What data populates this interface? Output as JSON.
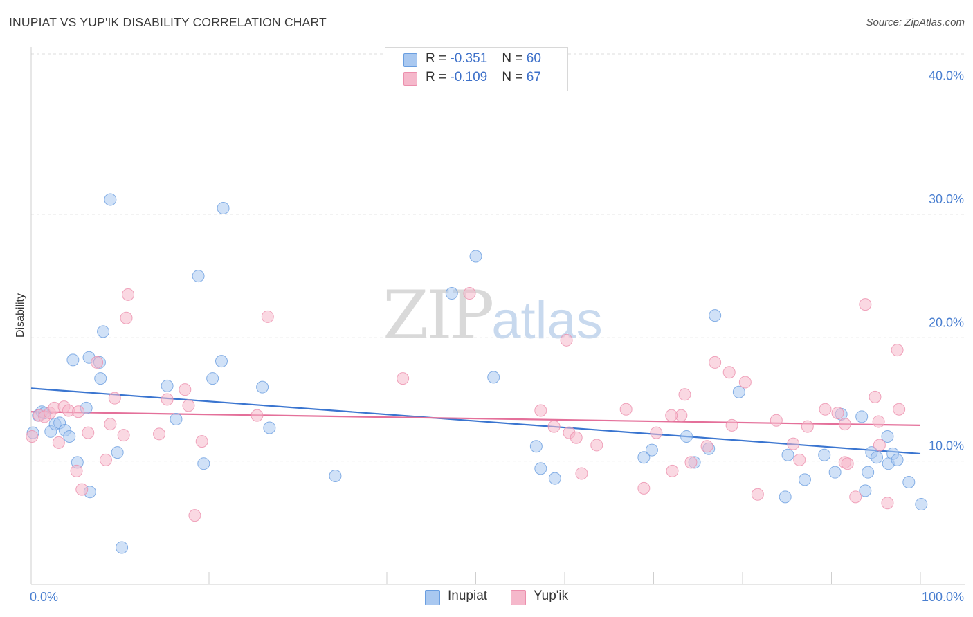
{
  "header": {
    "title": "INUPIAT VS YUP'IK DISABILITY CORRELATION CHART",
    "source": "Source: ZipAtlas.com"
  },
  "watermark": {
    "zip": "ZIP",
    "atlas": "atlas"
  },
  "legend": {
    "rows": [
      {
        "r_label": "R = ",
        "r_value": "-0.351",
        "n_label": "N = ",
        "n_value": "60",
        "color": "#a9c8f0"
      },
      {
        "r_label": "R = ",
        "r_value": "-0.109",
        "n_label": "N = ",
        "n_value": "67",
        "color": "#f5b8cb"
      }
    ]
  },
  "bottom_legend": {
    "items": [
      {
        "label": "Inupiat",
        "color": "#a9c8f0"
      },
      {
        "label": "Yup'ik",
        "color": "#f5b8cb"
      }
    ]
  },
  "chart_data": {
    "type": "scatter",
    "title": "INUPIAT VS YUP'IK DISABILITY CORRELATION CHART",
    "xlabel": "",
    "ylabel": "Disability",
    "xlim": [
      0,
      100
    ],
    "ylim": [
      0,
      43
    ],
    "x_tick_labels": [
      "0.0%",
      "100.0%"
    ],
    "y_ticks": [
      10,
      20,
      30,
      40
    ],
    "y_tick_labels": [
      "10.0%",
      "20.0%",
      "30.0%",
      "40.0%"
    ],
    "grid": true,
    "series": [
      {
        "name": "Inupiat",
        "color": "#6a9ee0",
        "fill": "#a9c8f0",
        "trend": {
          "x": [
            0,
            100
          ],
          "y": [
            15.9,
            10.6
          ]
        },
        "points": [
          [
            0.2,
            12.3
          ],
          [
            0.8,
            13.7
          ],
          [
            1.2,
            14.0
          ],
          [
            1.5,
            13.9
          ],
          [
            2.2,
            12.4
          ],
          [
            2.7,
            13.0
          ],
          [
            3.2,
            13.1
          ],
          [
            3.8,
            12.5
          ],
          [
            4.3,
            12.0
          ],
          [
            4.7,
            18.2
          ],
          [
            5.2,
            9.9
          ],
          [
            6.2,
            14.3
          ],
          [
            6.5,
            18.4
          ],
          [
            6.6,
            7.5
          ],
          [
            7.7,
            18.0
          ],
          [
            7.8,
            16.7
          ],
          [
            8.1,
            20.5
          ],
          [
            8.9,
            31.2
          ],
          [
            9.7,
            10.7
          ],
          [
            10.2,
            3.0
          ],
          [
            15.3,
            16.1
          ],
          [
            16.3,
            13.4
          ],
          [
            19.4,
            9.8
          ],
          [
            20.4,
            16.7
          ],
          [
            21.4,
            18.1
          ],
          [
            21.6,
            30.5
          ],
          [
            26.8,
            12.7
          ],
          [
            18.8,
            25.0
          ],
          [
            26.0,
            16.0
          ],
          [
            34.2,
            8.8
          ],
          [
            47.3,
            23.6
          ],
          [
            50.0,
            26.6
          ],
          [
            52.0,
            16.8
          ],
          [
            56.8,
            11.2
          ],
          [
            57.3,
            9.4
          ],
          [
            58.9,
            8.6
          ],
          [
            68.9,
            10.3
          ],
          [
            69.8,
            10.9
          ],
          [
            73.7,
            12.0
          ],
          [
            74.6,
            9.9
          ],
          [
            76.2,
            11.0
          ],
          [
            76.9,
            21.8
          ],
          [
            79.6,
            15.6
          ],
          [
            85.1,
            10.5
          ],
          [
            84.8,
            7.1
          ],
          [
            87.0,
            8.5
          ],
          [
            89.2,
            10.5
          ],
          [
            90.4,
            9.1
          ],
          [
            91.1,
            13.8
          ],
          [
            93.4,
            13.6
          ],
          [
            94.5,
            10.7
          ],
          [
            95.1,
            10.3
          ],
          [
            94.1,
            9.1
          ],
          [
            96.3,
            12.0
          ],
          [
            96.4,
            9.8
          ],
          [
            96.9,
            10.6
          ],
          [
            97.4,
            10.1
          ],
          [
            98.7,
            8.3
          ],
          [
            100.1,
            6.5
          ],
          [
            93.8,
            7.6
          ]
        ]
      },
      {
        "name": "Yup'ik",
        "color": "#ec8fad",
        "fill": "#f5b8cb",
        "trend": {
          "x": [
            0,
            100
          ],
          "y": [
            14.0,
            12.9
          ]
        },
        "points": [
          [
            0.1,
            12.0
          ],
          [
            0.9,
            13.7
          ],
          [
            1.5,
            13.6
          ],
          [
            2.1,
            13.9
          ],
          [
            2.6,
            14.3
          ],
          [
            3.1,
            11.5
          ],
          [
            3.7,
            14.4
          ],
          [
            4.2,
            14.1
          ],
          [
            5.1,
            9.2
          ],
          [
            5.3,
            14.0
          ],
          [
            5.7,
            7.7
          ],
          [
            6.4,
            12.3
          ],
          [
            7.4,
            18.0
          ],
          [
            8.4,
            10.1
          ],
          [
            8.9,
            13.0
          ],
          [
            9.4,
            15.1
          ],
          [
            10.4,
            12.1
          ],
          [
            10.9,
            23.5
          ],
          [
            10.7,
            21.6
          ],
          [
            14.4,
            12.2
          ],
          [
            15.3,
            15.0
          ],
          [
            17.3,
            15.8
          ],
          [
            17.7,
            14.5
          ],
          [
            18.4,
            5.6
          ],
          [
            19.2,
            11.6
          ],
          [
            26.6,
            21.7
          ],
          [
            25.4,
            13.7
          ],
          [
            41.8,
            16.7
          ],
          [
            49.3,
            23.6
          ],
          [
            57.3,
            14.1
          ],
          [
            58.8,
            12.8
          ],
          [
            60.2,
            19.8
          ],
          [
            60.5,
            12.3
          ],
          [
            61.3,
            11.9
          ],
          [
            61.9,
            9.0
          ],
          [
            63.6,
            11.3
          ],
          [
            66.9,
            14.2
          ],
          [
            68.9,
            7.8
          ],
          [
            70.3,
            12.3
          ],
          [
            72.1,
            9.2
          ],
          [
            73.1,
            13.7
          ],
          [
            73.5,
            15.4
          ],
          [
            74.2,
            9.9
          ],
          [
            76.0,
            11.2
          ],
          [
            76.9,
            18.0
          ],
          [
            78.5,
            17.2
          ],
          [
            78.8,
            12.9
          ],
          [
            80.3,
            16.4
          ],
          [
            81.7,
            7.3
          ],
          [
            83.8,
            13.3
          ],
          [
            85.7,
            11.4
          ],
          [
            86.4,
            10.1
          ],
          [
            87.3,
            12.8
          ],
          [
            89.3,
            14.2
          ],
          [
            90.7,
            13.9
          ],
          [
            91.5,
            9.9
          ],
          [
            91.8,
            9.8
          ],
          [
            92.7,
            7.1
          ],
          [
            93.8,
            22.7
          ],
          [
            94.9,
            15.2
          ],
          [
            95.3,
            13.2
          ],
          [
            95.4,
            11.3
          ],
          [
            96.3,
            6.6
          ],
          [
            97.4,
            19.0
          ],
          [
            97.6,
            14.2
          ],
          [
            91.5,
            13.0
          ],
          [
            72.0,
            13.7
          ]
        ]
      }
    ]
  }
}
